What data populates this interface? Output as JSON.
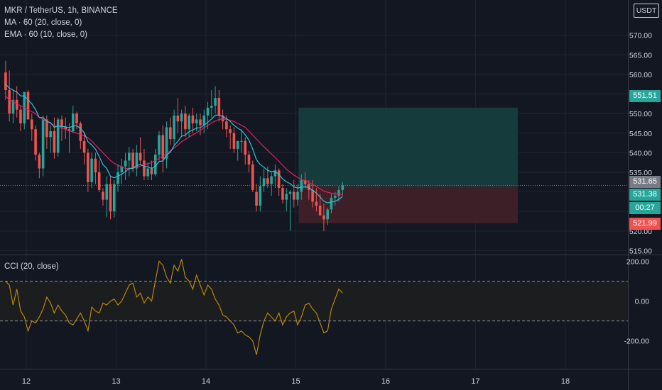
{
  "header": {
    "symbol_line": "MKR / TetherUS, 1h, BINANCE",
    "ma_line": "MA · 60 (20, close, 0)",
    "ema_line": "EMA · 60 (10, close, 0)",
    "currency": "USDT"
  },
  "price_tags": {
    "target": "551.51",
    "current": "531.65",
    "entry": "531.38",
    "countdown": "00:27",
    "stop": "521.99"
  },
  "cci_label": "CCI (20, close)",
  "colors": {
    "background": "#131722",
    "bull": "#26a69a",
    "bear": "#ef5350",
    "ma": "#e91e63",
    "ema": "#26c6da",
    "cci": "#b8860b",
    "target_zone": "#153b3d",
    "stop_zone": "#3d1f27"
  },
  "chart_data": [
    {
      "type": "candlestick",
      "title": "MKR / TetherUS, 1h, BINANCE",
      "ylim": [
        514,
        579
      ],
      "yticks": [
        "515.00",
        "520.00",
        "525.00",
        "530.00",
        "535.00",
        "540.00",
        "545.00",
        "550.00",
        "555.00",
        "560.00",
        "565.00",
        "570.00"
      ],
      "x_tick_labels": [
        "12",
        "13",
        "14",
        "15",
        "16",
        "17",
        "18"
      ],
      "x_tick_times": [
        12,
        13,
        14,
        15,
        16,
        17,
        18
      ],
      "start_time": 11.77,
      "bar_hours": 1,
      "ohlc": [
        [
          560.5,
          563.5,
          553.5,
          556.0
        ],
        [
          556.0,
          561.0,
          548.0,
          550.0
        ],
        [
          550.0,
          556.0,
          547.5,
          553.5
        ],
        [
          553.5,
          557.0,
          549.0,
          551.0
        ],
        [
          551.0,
          552.0,
          545.5,
          547.5
        ],
        [
          547.5,
          555.5,
          546.0,
          555.5
        ],
        [
          555.5,
          556.0,
          548.5,
          548.5
        ],
        [
          548.5,
          550.0,
          543.0,
          546.0
        ],
        [
          546.0,
          547.0,
          538.0,
          539.5
        ],
        [
          539.5,
          540.0,
          533.5,
          536.0
        ],
        [
          536.0,
          549.5,
          534.0,
          548.5
        ],
        [
          548.5,
          549.5,
          541.0,
          544.0
        ],
        [
          544.0,
          547.0,
          540.0,
          545.5
        ],
        [
          545.5,
          549.0,
          538.5,
          540.0
        ],
        [
          540.0,
          549.0,
          539.0,
          548.5
        ],
        [
          548.5,
          549.5,
          543.0,
          546.5
        ],
        [
          546.5,
          549.0,
          543.5,
          546.0
        ],
        [
          546.0,
          547.5,
          540.0,
          545.5
        ],
        [
          545.5,
          552.0,
          545.0,
          550.0
        ],
        [
          550.0,
          550.5,
          546.0,
          547.5
        ],
        [
          547.5,
          548.0,
          541.0,
          543.0
        ],
        [
          543.0,
          545.0,
          537.0,
          540.0
        ],
        [
          540.0,
          541.0,
          530.0,
          532.5
        ],
        [
          532.5,
          540.0,
          531.0,
          538.5
        ],
        [
          538.5,
          540.0,
          532.0,
          535.0
        ],
        [
          535.0,
          538.0,
          530.0,
          530.5
        ],
        [
          530.0,
          531.0,
          526.5,
          528.0
        ],
        [
          528.0,
          534.0,
          523.5,
          532.0
        ],
        [
          532.0,
          534.0,
          523.0,
          525.0
        ],
        [
          525.0,
          533.0,
          523.5,
          532.0
        ],
        [
          532.0,
          537.0,
          530.0,
          535.0
        ],
        [
          535.0,
          538.5,
          532.0,
          536.5
        ],
        [
          536.5,
          540.0,
          533.0,
          538.0
        ],
        [
          538.0,
          541.5,
          534.0,
          540.0
        ],
        [
          540.0,
          541.0,
          535.0,
          536.0
        ],
        [
          536.0,
          542.0,
          534.0,
          540.0
        ],
        [
          540.0,
          544.0,
          537.0,
          538.0
        ],
        [
          538.0,
          541.0,
          533.0,
          534.0
        ],
        [
          534.0,
          537.5,
          533.0,
          536.0
        ],
        [
          536.0,
          538.0,
          533.0,
          534.5
        ],
        [
          534.5,
          541.0,
          534.0,
          539.5
        ],
        [
          539.5,
          545.5,
          538.0,
          544.5
        ],
        [
          544.5,
          547.0,
          535.0,
          538.5
        ],
        [
          538.5,
          548.0,
          536.0,
          546.5
        ],
        [
          546.5,
          549.0,
          542.0,
          543.5
        ],
        [
          543.5,
          551.0,
          542.0,
          549.5
        ],
        [
          549.5,
          554.0,
          545.0,
          548.0
        ],
        [
          548.0,
          551.0,
          544.0,
          550.0
        ],
        [
          550.0,
          552.0,
          544.0,
          546.0
        ],
        [
          546.0,
          550.0,
          544.0,
          549.5
        ],
        [
          549.5,
          551.5,
          545.0,
          547.5
        ],
        [
          547.5,
          550.0,
          545.5,
          548.5
        ],
        [
          548.5,
          550.0,
          544.5,
          547.0
        ],
        [
          547.0,
          551.0,
          545.0,
          549.5
        ],
        [
          549.5,
          553.0,
          546.0,
          551.5
        ],
        [
          551.5,
          556.0,
          549.0,
          552.0
        ],
        [
          552.0,
          557.0,
          550.0,
          554.0
        ],
        [
          554.0,
          556.0,
          548.0,
          549.5
        ],
        [
          549.5,
          551.0,
          546.0,
          548.0
        ],
        [
          548.0,
          549.5,
          544.0,
          546.0
        ],
        [
          546.0,
          547.0,
          541.0,
          545.0
        ],
        [
          545.0,
          546.5,
          540.0,
          541.0
        ],
        [
          541.0,
          543.0,
          538.0,
          543.0
        ],
        [
          543.0,
          546.0,
          540.0,
          543.0
        ],
        [
          543.0,
          544.0,
          537.0,
          539.5
        ],
        [
          539.5,
          540.5,
          535.0,
          537.0
        ],
        [
          537.0,
          538.0,
          530.0,
          530.5
        ],
        [
          530.0,
          532.0,
          525.0,
          526.5
        ],
        [
          526.5,
          534.0,
          525.0,
          531.5
        ],
        [
          531.5,
          536.0,
          530.0,
          533.5
        ],
        [
          533.5,
          536.5,
          531.0,
          532.0
        ],
        [
          532.0,
          535.0,
          529.0,
          534.0
        ],
        [
          534.0,
          537.0,
          531.0,
          535.5
        ],
        [
          535.5,
          536.0,
          529.0,
          531.0
        ],
        [
          531.0,
          532.0,
          527.0,
          528.0
        ],
        [
          528.0,
          531.0,
          525.0,
          529.5
        ],
        [
          529.5,
          530.5,
          520.0,
          530.0
        ],
        [
          530.0,
          533.0,
          526.0,
          528.0
        ],
        [
          528.0,
          532.0,
          526.5,
          530.0
        ],
        [
          530.0,
          534.5,
          528.0,
          533.0
        ],
        [
          533.0,
          535.0,
          531.0,
          532.0
        ],
        [
          532.0,
          533.0,
          528.0,
          530.5
        ],
        [
          530.5,
          533.0,
          526.0,
          527.5
        ],
        [
          527.5,
          531.0,
          525.0,
          526.5
        ],
        [
          526.5,
          529.5,
          524.0,
          524.0
        ],
        [
          524.0,
          527.0,
          520.0,
          523.0
        ],
        [
          523.0,
          526.0,
          521.5,
          525.5
        ],
        [
          525.5,
          529.5,
          524.5,
          528.5
        ],
        [
          528.5,
          530.0,
          526.5,
          529.0
        ],
        [
          529.0,
          531.5,
          527.5,
          530.5
        ],
        [
          530.5,
          532.5,
          529.0,
          531.65
        ]
      ],
      "ma": [
        554.5,
        553.5,
        553.0,
        552.5,
        552.0,
        551.5,
        551.0,
        550.5,
        550.0,
        549.0,
        548.5,
        548.0,
        547.5,
        547.0,
        546.5,
        546.2,
        546.0,
        545.6,
        545.3,
        545.0,
        544.7,
        544.3,
        543.8,
        543.0,
        542.0,
        541.0,
        540.0,
        539.0,
        538.0,
        537.3,
        536.8,
        536.4,
        536.0,
        536.0,
        536.0,
        536.3,
        536.6,
        537.0,
        537.2,
        537.5,
        538.0,
        538.6,
        539.1,
        539.8,
        540.5,
        541.2,
        542.0,
        542.8,
        543.4,
        544.0,
        544.6,
        545.1,
        545.7,
        546.4,
        547.0,
        547.6,
        548.1,
        548.5,
        548.6,
        548.5,
        548.3,
        548.0,
        547.5,
        547.0,
        546.5,
        545.5,
        544.5,
        543.5,
        542.5,
        541.5,
        540.6,
        539.7,
        538.8,
        537.8,
        536.8,
        535.8,
        535.0,
        534.3,
        533.7,
        533.2,
        532.8,
        532.4,
        531.9,
        531.4,
        530.8,
        530.2,
        529.9,
        529.7,
        529.5,
        529.4,
        529.3
      ],
      "ema": [
        557.5,
        556.5,
        556.0,
        555.5,
        554.5,
        554.5,
        553.5,
        552.5,
        551.0,
        549.0,
        549.0,
        548.0,
        547.7,
        546.5,
        546.8,
        546.7,
        546.6,
        546.4,
        546.8,
        546.9,
        546.2,
        545.1,
        542.8,
        542.0,
        540.9,
        539.0,
        537.0,
        536.0,
        534.0,
        533.6,
        534.0,
        534.5,
        535.2,
        536.0,
        536.0,
        536.7,
        537.0,
        536.5,
        536.4,
        536.0,
        536.5,
        537.8,
        537.9,
        539.5,
        540.1,
        541.8,
        542.9,
        544.2,
        544.5,
        545.4,
        545.8,
        546.3,
        546.4,
        547.0,
        547.8,
        548.6,
        549.6,
        549.6,
        549.3,
        548.7,
        548.0,
        547.0,
        546.3,
        545.7,
        544.6,
        543.2,
        540.9,
        538.2,
        537.0,
        536.3,
        535.5,
        535.2,
        535.2,
        534.5,
        533.3,
        532.6,
        532.1,
        531.3,
        531.0,
        531.2,
        531.3,
        531.1,
        530.4,
        529.7,
        528.7,
        527.6,
        527.2,
        527.4,
        527.6,
        528.1,
        528.8
      ],
      "long_position": {
        "entry": 531.38,
        "target": 551.51,
        "stop": 521.99,
        "start_time": 15.03,
        "end_time": 17.47
      },
      "current_price": 531.65
    },
    {
      "type": "line",
      "title": "CCI (20, close)",
      "ylim": [
        -340,
        230
      ],
      "yticks": [
        "200.00",
        "0.00",
        "-200.00"
      ],
      "band": [
        -100,
        100
      ],
      "series": [
        {
          "values": [
            100,
            80,
            -20,
            60,
            -50,
            -80,
            -150,
            -100,
            -110,
            -80,
            -40,
            20,
            -10,
            -60,
            -20,
            -50,
            -70,
            -110,
            -120,
            -90,
            -60,
            -100,
            -150,
            -30,
            -50,
            -60,
            -10,
            -20,
            0,
            10,
            -20,
            0,
            40,
            80,
            90,
            20,
            40,
            -10,
            20,
            0,
            100,
            200,
            180,
            120,
            90,
            180,
            150,
            210,
            120,
            100,
            60,
            130,
            80,
            30,
            80,
            60,
            10,
            -20,
            -70,
            -80,
            -100,
            -120,
            -160,
            -150,
            -170,
            -180,
            -200,
            -270,
            -170,
            -100,
            -60,
            -80,
            -100,
            -60,
            -120,
            -80,
            -60,
            -50,
            -120,
            -80,
            -20,
            -10,
            -40,
            -60,
            -110,
            -160,
            -150,
            -40,
            10,
            60,
            40
          ]
        }
      ]
    }
  ]
}
